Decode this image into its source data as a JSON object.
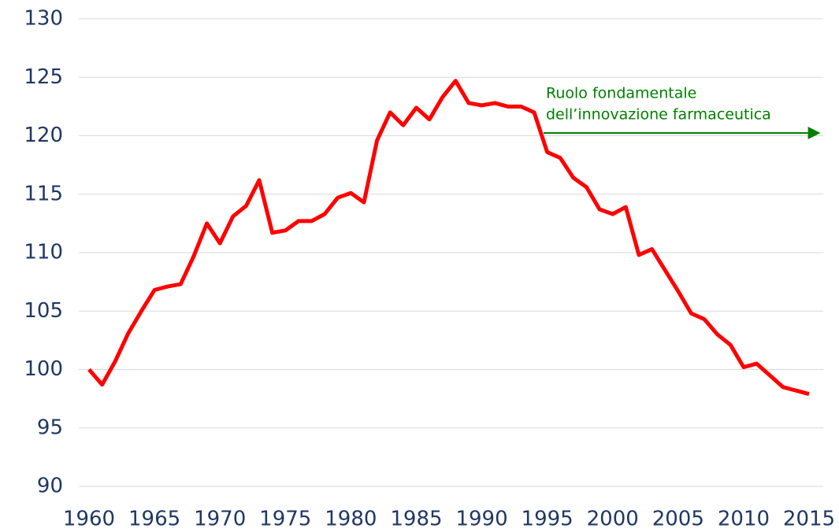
{
  "chart_data": {
    "type": "line",
    "annotation": [
      "Ruolo fondamentale",
      "dell’innovazione farmaceutica"
    ],
    "x": [
      1960,
      1961,
      1962,
      1963,
      1964,
      1965,
      1966,
      1967,
      1968,
      1969,
      1970,
      1971,
      1972,
      1973,
      1974,
      1975,
      1976,
      1977,
      1978,
      1979,
      1980,
      1981,
      1982,
      1983,
      1984,
      1985,
      1986,
      1987,
      1988,
      1989,
      1990,
      1991,
      1992,
      1993,
      1994,
      1995,
      1996,
      1997,
      1998,
      1999,
      2000,
      2001,
      2002,
      2003,
      2004,
      2005,
      2006,
      2007,
      2008,
      2009,
      2010,
      2011,
      2012,
      2013,
      2014,
      2015
    ],
    "values": [
      100,
      98.7,
      100.7,
      103.1,
      105,
      106.8,
      107.1,
      107.3,
      109.7,
      112.5,
      110.8,
      113.1,
      114,
      116.2,
      111.7,
      111.9,
      112.7,
      112.7,
      113.3,
      114.7,
      115.1,
      114.3,
      119.6,
      122,
      120.9,
      122.4,
      121.4,
      123.3,
      124.7,
      122.8,
      122.6,
      122.8,
      122.5,
      122.5,
      122,
      118.6,
      118.1,
      116.4,
      115.6,
      113.7,
      113.3,
      113.9,
      109.8,
      110.3,
      108.5,
      106.7,
      104.8,
      104.3,
      103,
      102.1,
      100.2,
      100.5,
      99.5,
      98.5,
      98.2,
      97.9
    ],
    "color": "#ff0000",
    "xlim": [
      1960,
      2015
    ],
    "xticks": [
      1960,
      1965,
      1970,
      1975,
      1980,
      1985,
      1990,
      1995,
      2000,
      2005,
      2010,
      2015
    ],
    "ylim": [
      90,
      130
    ],
    "yticks": [
      90,
      95,
      100,
      105,
      110,
      115,
      120,
      125,
      130
    ],
    "grid": true
  }
}
